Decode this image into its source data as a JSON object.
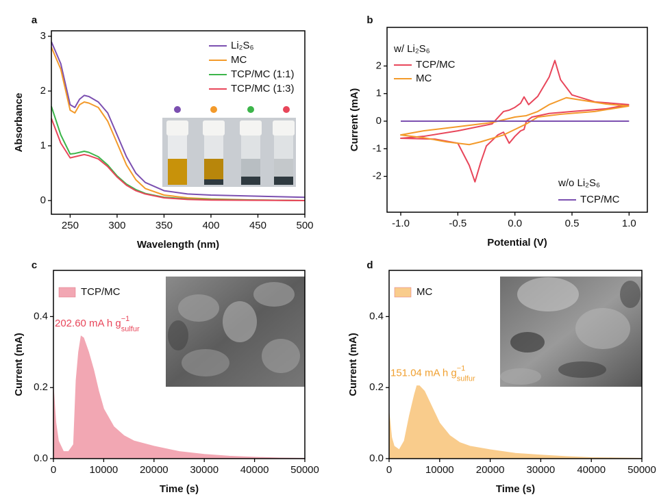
{
  "chart_data": [
    {
      "type": "line",
      "panel_label": "a",
      "x_label": "Wavelength (nm)",
      "y_label": "Absorbance",
      "xlim": [
        230,
        500
      ],
      "ylim": [
        -0.25,
        3.1
      ],
      "xticks": [
        250,
        300,
        350,
        400,
        450,
        500
      ],
      "yticks": [
        0,
        1,
        2,
        3
      ],
      "legend": "upper right",
      "x": [
        230,
        240,
        250,
        255,
        260,
        265,
        270,
        280,
        290,
        300,
        310,
        320,
        330,
        350,
        375,
        400,
        450,
        500
      ],
      "series": [
        {
          "name": "Li₂S₆",
          "color": "#7b4fb0",
          "values": [
            2.9,
            2.5,
            1.75,
            1.7,
            1.85,
            1.92,
            1.9,
            1.8,
            1.6,
            1.2,
            0.8,
            0.5,
            0.33,
            0.18,
            0.12,
            0.1,
            0.08,
            0.06
          ]
        },
        {
          "name": "MC",
          "color": "#f39a2a",
          "values": [
            2.8,
            2.4,
            1.65,
            1.6,
            1.75,
            1.8,
            1.78,
            1.7,
            1.45,
            1.05,
            0.65,
            0.38,
            0.22,
            0.1,
            0.05,
            0.03,
            0.01,
            0.0
          ]
        },
        {
          "name": "TCP/MC (1:1)",
          "color": "#3cb54a",
          "values": [
            1.72,
            1.2,
            0.85,
            0.86,
            0.88,
            0.9,
            0.88,
            0.8,
            0.65,
            0.45,
            0.3,
            0.2,
            0.13,
            0.06,
            0.03,
            0.02,
            0.01,
            0.0
          ]
        },
        {
          "name": "TCP/MC (1:3)",
          "color": "#e8465a",
          "values": [
            1.5,
            1.05,
            0.78,
            0.8,
            0.82,
            0.84,
            0.82,
            0.76,
            0.62,
            0.43,
            0.28,
            0.18,
            0.12,
            0.05,
            0.02,
            0.01,
            0.005,
            0.0
          ]
        }
      ]
    },
    {
      "type": "line",
      "panel_label": "b",
      "x_label": "Potential (V)",
      "y_label": "Current (mA)",
      "xlim": [
        -1.12,
        1.16
      ],
      "ylim": [
        -3.3,
        3.4
      ],
      "xticks": [
        {
          "value": -1,
          "label": "-1.0"
        },
        {
          "value": -0.5,
          "label": "-0.5"
        },
        {
          "value": 0,
          "label": "0.0"
        },
        0.5,
        {
          "value": 1,
          "label": "1.0"
        }
      ],
      "yticks": [
        -2,
        -1,
        0,
        1,
        2
      ],
      "legend_titles": [
        "w/ Li₂S₆",
        "w/o Li₂S₆"
      ],
      "series": [
        {
          "name": "TCP/MC",
          "color": "#e8465a",
          "x": [
            1,
            0.8,
            0.5,
            0.3,
            0.15,
            0.1,
            0.08,
            0.05,
            0.0,
            -0.05,
            -0.1,
            -0.15,
            -0.25,
            -0.3,
            -0.35,
            -0.4,
            -0.5,
            -0.7,
            -1,
            -0.8,
            -0.5,
            -0.2,
            -0.1,
            -0.05,
            0,
            0.05,
            0.08,
            0.12,
            0.2,
            0.3,
            0.35,
            0.4,
            0.5,
            0.7,
            1
          ],
          "values": [
            0.6,
            0.45,
            0.35,
            0.28,
            0.15,
            0.0,
            -0.3,
            -0.35,
            -0.55,
            -0.8,
            -0.4,
            -0.5,
            -0.9,
            -1.5,
            -2.2,
            -1.6,
            -0.8,
            -0.65,
            -0.62,
            -0.55,
            -0.35,
            -0.1,
            0.35,
            0.4,
            0.5,
            0.65,
            0.88,
            0.6,
            0.9,
            1.6,
            2.2,
            1.5,
            0.95,
            0.7,
            0.6
          ]
        },
        {
          "name": "MC",
          "color": "#f39a2a",
          "x": [
            1,
            0.7,
            0.4,
            0.2,
            0.1,
            0,
            -0.1,
            -0.3,
            -0.4,
            -0.6,
            -0.8,
            -1,
            -0.8,
            -0.5,
            -0.2,
            0,
            0.1,
            0.2,
            0.3,
            0.45,
            0.6,
            0.8,
            1
          ],
          "values": [
            0.55,
            0.35,
            0.25,
            0.15,
            -0.1,
            -0.3,
            -0.5,
            -0.75,
            -0.85,
            -0.75,
            -0.6,
            -0.5,
            -0.35,
            -0.2,
            -0.05,
            0.15,
            0.2,
            0.35,
            0.6,
            0.85,
            0.75,
            0.62,
            0.55
          ]
        },
        {
          "name": "TCP/MC",
          "color": "#7b4fb0",
          "x": [
            -1,
            1
          ],
          "values": [
            0,
            0
          ]
        }
      ]
    },
    {
      "type": "area",
      "panel_label": "c",
      "x_label": "Time (s)",
      "y_label": "Current (mA)",
      "xlim": [
        0,
        50000
      ],
      "ylim": [
        0,
        0.53
      ],
      "xticks": [
        0,
        10000,
        20000,
        30000,
        40000,
        50000
      ],
      "yticks": [
        {
          "value": 0,
          "label": "0.0"
        },
        0.2,
        0.4
      ],
      "annotation": {
        "text": "202.60 mA h g",
        "superscript": "−1",
        "subscript": "sulfur",
        "color": "#e8465a"
      },
      "x": [
        0,
        500,
        1000,
        2000,
        3000,
        4000,
        4500,
        5000,
        5500,
        6000,
        7000,
        8000,
        9000,
        10000,
        12000,
        14000,
        16000,
        20000,
        25000,
        30000,
        35000,
        40000,
        45000,
        50000
      ],
      "series": [
        {
          "name": "TCP/MC",
          "color": "#f2a7b3",
          "values": [
            0.2,
            0.1,
            0.05,
            0.02,
            0.02,
            0.04,
            0.22,
            0.3,
            0.345,
            0.34,
            0.3,
            0.25,
            0.19,
            0.14,
            0.09,
            0.065,
            0.05,
            0.035,
            0.02,
            0.012,
            0.007,
            0.004,
            0.002,
            0.001
          ]
        }
      ]
    },
    {
      "type": "area",
      "panel_label": "d",
      "x_label": "Time (s)",
      "y_label": "Current (mA)",
      "xlim": [
        0,
        50000
      ],
      "ylim": [
        0,
        0.53
      ],
      "xticks": [
        0,
        10000,
        20000,
        30000,
        40000,
        50000
      ],
      "yticks": [
        {
          "value": 0,
          "label": "0.0"
        },
        0.2,
        0.4
      ],
      "annotation": {
        "text": "151.04 mA h g",
        "superscript": "−1",
        "subscript": "sulfur",
        "color": "#f0a030"
      },
      "x": [
        0,
        500,
        1000,
        2000,
        3000,
        4000,
        4500,
        5000,
        5500,
        6000,
        7000,
        8000,
        9000,
        10000,
        12000,
        14000,
        16000,
        20000,
        25000,
        30000,
        35000,
        40000,
        45000,
        50000
      ],
      "series": [
        {
          "name": "MC",
          "color": "#f9cc8c",
          "values": [
            0.13,
            0.06,
            0.035,
            0.025,
            0.05,
            0.12,
            0.15,
            0.18,
            0.205,
            0.205,
            0.19,
            0.16,
            0.13,
            0.1,
            0.065,
            0.045,
            0.035,
            0.025,
            0.015,
            0.01,
            0.006,
            0.003,
            0.002,
            0.001
          ]
        }
      ]
    }
  ]
}
